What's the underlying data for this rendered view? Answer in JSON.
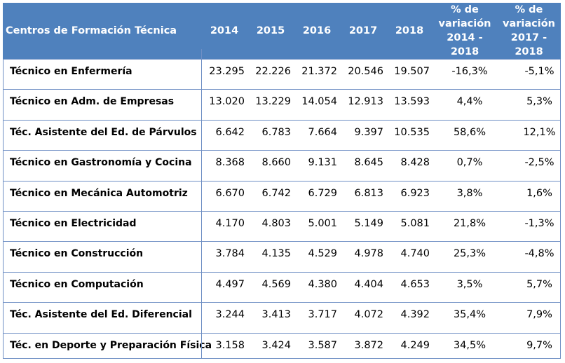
{
  "table": {
    "headers": {
      "name": "Centros de Formación Técnica",
      "years": [
        "2014",
        "2015",
        "2016",
        "2017",
        "2018"
      ],
      "pct1": [
        "% de",
        "variación",
        "2014 - 2018"
      ],
      "pct2": [
        "% de",
        "variación",
        "2017 - 2018"
      ]
    },
    "rows": [
      {
        "name": "Técnico en Enfermería",
        "values": [
          "23.295",
          "22.226",
          "21.372",
          "20.546",
          "19.507"
        ],
        "pct1": "-16,3%",
        "pct2": "-5,1%"
      },
      {
        "name": "Técnico en Adm. de Empresas",
        "values": [
          "13.020",
          "13.229",
          "14.054",
          "12.913",
          "13.593"
        ],
        "pct1": "4,4%",
        "pct2": "5,3%"
      },
      {
        "name": "Téc. Asistente del Ed. de Párvulos",
        "values": [
          "6.642",
          "6.783",
          "7.664",
          "9.397",
          "10.535"
        ],
        "pct1": "58,6%",
        "pct2": "12,1%"
      },
      {
        "name": "Técnico en Gastronomía y Cocina",
        "values": [
          "8.368",
          "8.660",
          "9.131",
          "8.645",
          "8.428"
        ],
        "pct1": "0,7%",
        "pct2": "-2,5%"
      },
      {
        "name": "Técnico en Mecánica Automotriz",
        "values": [
          "6.670",
          "6.742",
          "6.729",
          "6.813",
          "6.923"
        ],
        "pct1": "3,8%",
        "pct2": "1,6%"
      },
      {
        "name": "Técnico en Electricidad",
        "values": [
          "4.170",
          "4.803",
          "5.001",
          "5.149",
          "5.081"
        ],
        "pct1": "21,8%",
        "pct2": "-1,3%"
      },
      {
        "name": "Técnico en Construcción",
        "values": [
          "3.784",
          "4.135",
          "4.529",
          "4.978",
          "4.740"
        ],
        "pct1": "25,3%",
        "pct2": "-4,8%"
      },
      {
        "name": "Técnico en Computación",
        "values": [
          "4.497",
          "4.569",
          "4.380",
          "4.404",
          "4.653"
        ],
        "pct1": "3,5%",
        "pct2": "5,7%"
      },
      {
        "name": "Téc. Asistente del Ed. Diferencial",
        "values": [
          "3.244",
          "3.413",
          "3.717",
          "4.072",
          "4.392"
        ],
        "pct1": "35,4%",
        "pct2": "7,9%"
      },
      {
        "name": "Téc. en Deporte y Preparación Física",
        "values": [
          "3.158",
          "3.424",
          "3.587",
          "3.872",
          "4.249"
        ],
        "pct1": "34,5%",
        "pct2": "9,7%"
      }
    ]
  },
  "colors": {
    "header_bg": "#4f81bd",
    "border": "#6f8fc4",
    "header_text": "#ffffff"
  }
}
